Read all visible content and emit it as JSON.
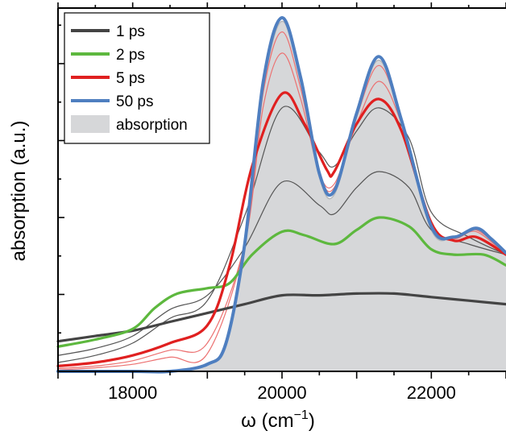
{
  "chart_data": {
    "type": "line",
    "title": "",
    "xlabel": "ω (cm",
    "xlabel_sup": "−1",
    "xlabel_close": ")",
    "ylabel": "absorption (a.u.)",
    "xlim": [
      17000,
      23000
    ],
    "ylim": [
      0,
      1
    ],
    "x_ticks": [
      18000,
      20000,
      22000
    ],
    "x_tick_labels": [
      "18000",
      "20000",
      "22000"
    ],
    "legend_position": "top-left",
    "colors": {
      "1ps": "#444444",
      "2ps": "#5db83e",
      "5ps": "#e02020",
      "50ps": "#4f7fc0",
      "absorption_fill": "#d6d7d9",
      "absorption_edge": "#b5b7ba",
      "intermediate_dark": "#555555",
      "intermediate_red": "#ec7070"
    },
    "absorption": {
      "name": "absorption",
      "x": [
        17000,
        18500,
        19000,
        19250,
        19500,
        19750,
        20000,
        20250,
        20500,
        20700,
        21000,
        21300,
        21600,
        22000,
        22300,
        22600,
        22800,
        23000
      ],
      "y": [
        0.0,
        0.0,
        0.02,
        0.08,
        0.35,
        0.8,
        0.99,
        0.82,
        0.55,
        0.5,
        0.72,
        0.88,
        0.7,
        0.4,
        0.38,
        0.4,
        0.37,
        0.33
      ]
    },
    "series": [
      {
        "name": "1 ps",
        "x": [
          17000,
          17500,
          18000,
          18500,
          19000,
          19500,
          20000,
          20500,
          21000,
          21500,
          22000,
          22500,
          23000
        ],
        "y": [
          0.085,
          0.1,
          0.115,
          0.14,
          0.165,
          0.19,
          0.215,
          0.215,
          0.22,
          0.22,
          0.21,
          0.2,
          0.19
        ]
      },
      {
        "name": "2 ps",
        "x": [
          17000,
          17500,
          18000,
          18300,
          18600,
          19000,
          19300,
          19600,
          20000,
          20300,
          20700,
          21000,
          21300,
          21700,
          22000,
          22300,
          22700,
          23000
        ],
        "y": [
          0.07,
          0.09,
          0.12,
          0.18,
          0.22,
          0.235,
          0.25,
          0.33,
          0.395,
          0.385,
          0.36,
          0.4,
          0.435,
          0.41,
          0.345,
          0.33,
          0.33,
          0.3
        ]
      },
      {
        "name": "5 ps",
        "x": [
          17000,
          17500,
          18000,
          18500,
          19000,
          19300,
          19600,
          20000,
          20300,
          20600,
          20700,
          21000,
          21300,
          21600,
          22000,
          22300,
          22600,
          23000
        ],
        "y": [
          0.015,
          0.025,
          0.045,
          0.08,
          0.13,
          0.3,
          0.58,
          0.785,
          0.7,
          0.57,
          0.565,
          0.7,
          0.77,
          0.68,
          0.42,
          0.37,
          0.38,
          0.33
        ]
      },
      {
        "name": "50 ps",
        "x": [
          17000,
          18000,
          18500,
          19000,
          19250,
          19500,
          19750,
          20000,
          20250,
          20500,
          20700,
          21000,
          21300,
          21600,
          22000,
          22300,
          22600,
          22800,
          23000
        ],
        "y": [
          0.0,
          0.0,
          0.0,
          0.02,
          0.08,
          0.36,
          0.82,
          1.0,
          0.83,
          0.56,
          0.51,
          0.73,
          0.89,
          0.71,
          0.41,
          0.38,
          0.405,
          0.375,
          0.335
        ]
      }
    ],
    "intermediate_curves": [
      {
        "style": "dark",
        "x": [
          17000,
          17500,
          18000,
          18500,
          19000,
          19500,
          20000,
          20500,
          20700,
          21000,
          21300,
          21700,
          22000,
          22500,
          23000
        ],
        "y": [
          0.045,
          0.065,
          0.1,
          0.175,
          0.215,
          0.35,
          0.535,
          0.47,
          0.445,
          0.52,
          0.565,
          0.52,
          0.4,
          0.36,
          0.33
        ]
      },
      {
        "style": "dark",
        "x": [
          17000,
          17500,
          18000,
          18500,
          19000,
          19500,
          20000,
          20500,
          20700,
          21000,
          21300,
          21700,
          22000,
          22500,
          23000
        ],
        "y": [
          0.025,
          0.045,
          0.08,
          0.15,
          0.2,
          0.44,
          0.745,
          0.62,
          0.58,
          0.68,
          0.745,
          0.66,
          0.45,
          0.38,
          0.33
        ]
      },
      {
        "style": "red",
        "x": [
          17000,
          17500,
          18000,
          18500,
          19000,
          19500,
          19750,
          20000,
          20250,
          20500,
          20700,
          21000,
          21300,
          21600,
          22000,
          22300,
          22600,
          23000
        ],
        "y": [
          0.008,
          0.015,
          0.03,
          0.06,
          0.08,
          0.36,
          0.75,
          0.9,
          0.77,
          0.56,
          0.53,
          0.7,
          0.82,
          0.7,
          0.41,
          0.375,
          0.395,
          0.33
        ]
      },
      {
        "style": "red",
        "x": [
          17000,
          17500,
          18000,
          18500,
          19000,
          19500,
          19750,
          20000,
          20250,
          20500,
          20700,
          21000,
          21300,
          21600,
          22000,
          22300,
          22600,
          23000
        ],
        "y": [
          0.004,
          0.01,
          0.02,
          0.04,
          0.05,
          0.36,
          0.79,
          0.96,
          0.8,
          0.56,
          0.52,
          0.72,
          0.865,
          0.71,
          0.41,
          0.38,
          0.4,
          0.335
        ]
      }
    ]
  }
}
